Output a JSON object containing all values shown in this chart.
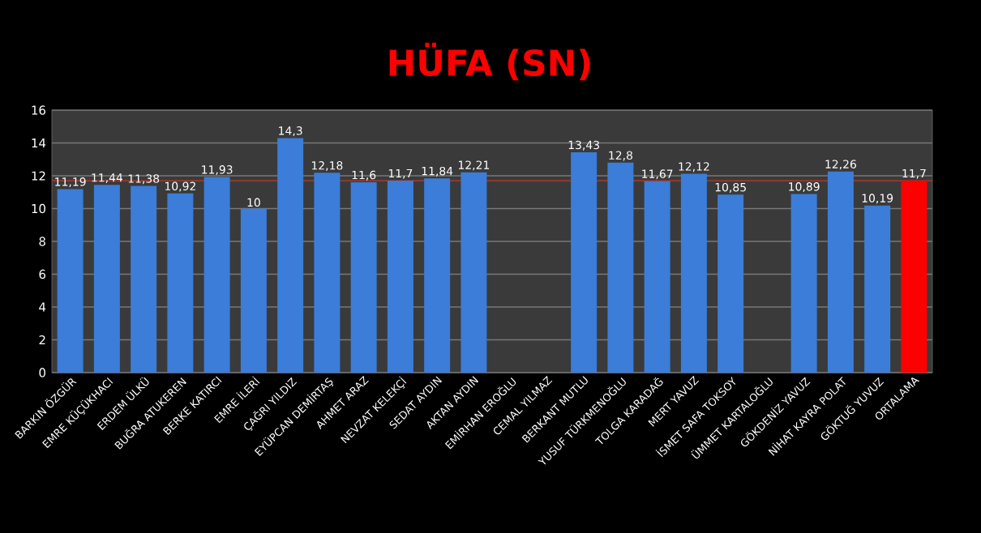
{
  "chart_data": {
    "type": "bar",
    "title": "HÜFA (SN)",
    "categories": [
      "BARKIN ÖZGÜR",
      "EMRE KÜÇÜKHACI",
      "ERDEM ÜLKÜ",
      "BUĞRA ATUKEREN",
      "BERKE KATIRCI",
      "EMRE İLERİ",
      "ÇAĞRI YILDIZ",
      "EYÜPCAN DEMİRTAŞ",
      "AHMET ARAZ",
      "NEVZAT KELEKÇİ",
      "SEDAT AYDIN",
      "AKTAN AYDIN",
      "EMİRHAN EROĞLU",
      "CEMAL YILMAZ",
      "BERKANT MUTLU",
      "YUSUF TÜRKMENOĞLU",
      "TOLGA KARADAĞ",
      "MERT YAVUZ",
      "İSMET SAFA TOKSOY",
      "ÜMMET KARTALOĞLU",
      "GÖKDENİZ YAVUZ",
      "NİHAT KAYRA POLAT",
      "GÖKTUĞ YUVUZ",
      "ORTALAMA"
    ],
    "values": [
      11.19,
      11.44,
      11.38,
      10.92,
      11.93,
      10,
      14.3,
      12.18,
      11.6,
      11.7,
      11.84,
      12.21,
      null,
      null,
      13.43,
      12.8,
      11.67,
      12.12,
      10.85,
      null,
      10.89,
      12.26,
      10.19,
      11.7
    ],
    "value_labels": [
      "11,19",
      "11,44",
      "11,38",
      "10,92",
      "11,93",
      "10",
      "14,3",
      "12,18",
      "11,6",
      "11,7",
      "11,84",
      "12,21",
      null,
      null,
      "13,43",
      "12,8",
      "11,67",
      "12,12",
      "10,85",
      null,
      "10,89",
      "12,26",
      "10,19",
      "11,7"
    ],
    "colors": [
      "#3b7dd8",
      "#3b7dd8",
      "#3b7dd8",
      "#3b7dd8",
      "#3b7dd8",
      "#3b7dd8",
      "#3b7dd8",
      "#3b7dd8",
      "#3b7dd8",
      "#3b7dd8",
      "#3b7dd8",
      "#3b7dd8",
      "#3b7dd8",
      "#3b7dd8",
      "#3b7dd8",
      "#3b7dd8",
      "#3b7dd8",
      "#3b7dd8",
      "#3b7dd8",
      "#3b7dd8",
      "#3b7dd8",
      "#3b7dd8",
      "#3b7dd8",
      "#ff0000"
    ],
    "ylim": [
      0,
      16
    ],
    "yticks": [
      0,
      2,
      4,
      6,
      8,
      10,
      12,
      14,
      16
    ],
    "grid": "y",
    "ref_lines": [
      {
        "axis": "y",
        "value": 11.7,
        "color": "#c0392b"
      }
    ]
  }
}
